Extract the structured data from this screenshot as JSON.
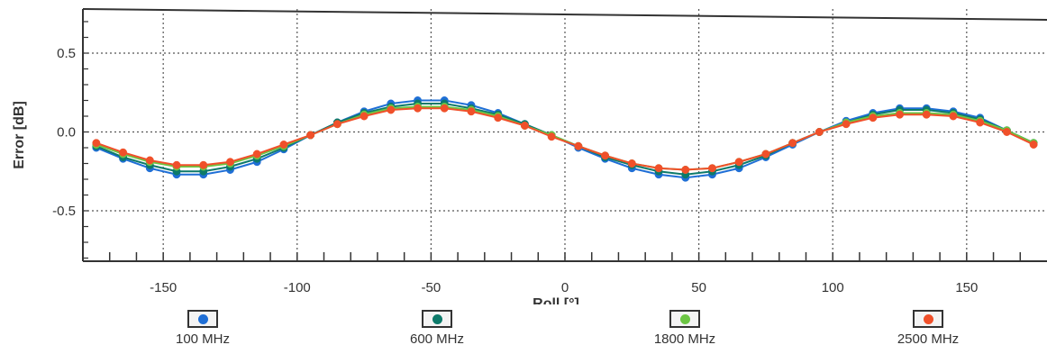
{
  "chart_data": {
    "type": "line",
    "title": "",
    "xlabel": "Roll [°]",
    "ylabel": "Error [dB]",
    "xlim": [
      -180,
      180
    ],
    "ylim": [
      -0.82,
      0.78
    ],
    "xticks": [
      -150,
      -100,
      -50,
      0,
      50,
      100,
      150
    ],
    "xtick_labels": [
      "-150",
      "-100",
      "-50",
      "0",
      "50",
      "100",
      "150"
    ],
    "yticks": [
      0.5,
      0.0,
      -0.5
    ],
    "ytick_labels": [
      "0.5",
      "0.0",
      "-0.5"
    ],
    "grid": true,
    "legend_position": "bottom",
    "x": [
      -175,
      -165,
      -155,
      -145,
      -135,
      -125,
      -115,
      -105,
      -95,
      -85,
      -75,
      -65,
      -55,
      -45,
      -35,
      -25,
      -15,
      -5,
      5,
      15,
      25,
      35,
      45,
      55,
      65,
      75,
      85,
      95,
      105,
      115,
      125,
      135,
      145,
      155,
      165,
      175
    ],
    "series": [
      {
        "name": "100 MHz",
        "color": "#1f6fd6",
        "values": [
          -0.1,
          -0.17,
          -0.23,
          -0.27,
          -0.27,
          -0.24,
          -0.19,
          -0.11,
          -0.02,
          0.06,
          0.13,
          0.18,
          0.2,
          0.2,
          0.17,
          0.12,
          0.05,
          -0.02,
          -0.1,
          -0.17,
          -0.23,
          -0.27,
          -0.29,
          -0.27,
          -0.23,
          -0.16,
          -0.08,
          0.0,
          0.07,
          0.12,
          0.15,
          0.15,
          0.13,
          0.09,
          0.01,
          -0.07
        ]
      },
      {
        "name": "600 MHz",
        "color": "#0d7a6a",
        "values": [
          -0.09,
          -0.16,
          -0.21,
          -0.25,
          -0.25,
          -0.22,
          -0.17,
          -0.1,
          -0.02,
          0.06,
          0.12,
          0.16,
          0.18,
          0.18,
          0.15,
          0.11,
          0.05,
          -0.02,
          -0.09,
          -0.16,
          -0.21,
          -0.25,
          -0.27,
          -0.25,
          -0.21,
          -0.15,
          -0.07,
          0.0,
          0.06,
          0.11,
          0.14,
          0.14,
          0.12,
          0.08,
          0.01,
          -0.07
        ]
      },
      {
        "name": "1800 MHz",
        "color": "#6cc644",
        "values": [
          -0.08,
          -0.14,
          -0.19,
          -0.22,
          -0.22,
          -0.2,
          -0.15,
          -0.09,
          -0.02,
          0.05,
          0.11,
          0.15,
          0.16,
          0.16,
          0.14,
          0.1,
          0.04,
          -0.02,
          -0.09,
          -0.15,
          -0.2,
          -0.23,
          -0.24,
          -0.23,
          -0.19,
          -0.14,
          -0.07,
          0.0,
          0.06,
          0.1,
          0.12,
          0.12,
          0.11,
          0.07,
          0.01,
          -0.07
        ]
      },
      {
        "name": "2500 MHz",
        "color": "#f0502a",
        "values": [
          -0.07,
          -0.13,
          -0.18,
          -0.21,
          -0.21,
          -0.19,
          -0.14,
          -0.08,
          -0.02,
          0.05,
          0.1,
          0.14,
          0.15,
          0.15,
          0.13,
          0.09,
          0.04,
          -0.03,
          -0.09,
          -0.15,
          -0.2,
          -0.23,
          -0.24,
          -0.23,
          -0.19,
          -0.14,
          -0.07,
          0.0,
          0.05,
          0.09,
          0.11,
          0.11,
          0.1,
          0.06,
          0.0,
          -0.08
        ]
      }
    ]
  },
  "legend": {
    "items": [
      {
        "label": "100 MHz",
        "color": "#1f6fd6"
      },
      {
        "label": "600 MHz",
        "color": "#0d7a6a"
      },
      {
        "label": "1800 MHz",
        "color": "#6cc644"
      },
      {
        "label": "2500 MHz",
        "color": "#f0502a"
      }
    ]
  }
}
